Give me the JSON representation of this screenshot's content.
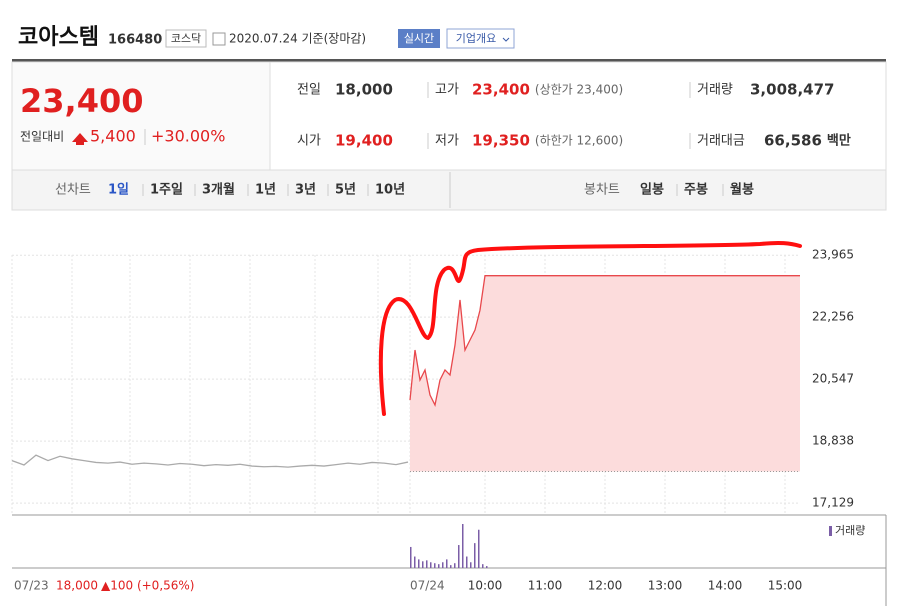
{
  "header": {
    "name": "코아스템",
    "code": "166480",
    "market": "코스닥",
    "date": "2020.07.24 기준(장마감)",
    "realtime": "실시간",
    "company_info": "기업개요"
  },
  "summary": {
    "price": "23,400",
    "change_label": "전일대비",
    "change": "5,400",
    "change_rate": "+30.00%"
  },
  "stats": [
    {
      "label": "전일",
      "value": "18,000"
    },
    {
      "label": "고가",
      "value": "23,400",
      "note": "(상한가 23,400)"
    },
    {
      "label": "거래량",
      "value": "3,008,477"
    },
    {
      "label": "시가",
      "value": "19,400"
    },
    {
      "label": "저가",
      "value": "19,350",
      "note": "(하한가 12,600)"
    },
    {
      "label": "거래대금",
      "value": "66,586",
      "unit": "백만"
    }
  ],
  "tabs": {
    "line_label": "선차트",
    "line": [
      "1일",
      "1주일",
      "3개월",
      "1년",
      "3년",
      "5년",
      "10년"
    ],
    "candle_label": "봉차트",
    "candle": [
      "일봉",
      "주봉",
      "월봉"
    ]
  },
  "chart_data": {
    "type": "line",
    "ylim": [
      16800,
      24660
    ],
    "yticks": [
      {
        "value": 23965,
        "label": "23,965"
      },
      {
        "value": 22256,
        "label": "22,256"
      },
      {
        "value": 20547,
        "label": "20,547"
      },
      {
        "value": 18838,
        "label": "18,838"
      },
      {
        "value": 17129,
        "label": "17,129"
      }
    ],
    "baseline": 18000,
    "series": [
      {
        "color": "#aaaaaa",
        "values": [
          18300,
          18180,
          18450,
          18300,
          18420,
          18350,
          18300,
          18250,
          18230,
          18260,
          18200,
          18230,
          18210,
          18180,
          18220,
          18200,
          18160,
          18190,
          18170,
          18200,
          18150,
          18130,
          18140,
          18120,
          18150,
          18170,
          18150,
          18190,
          18230,
          18200,
          18250,
          18230,
          18190,
          18260
        ]
      },
      {
        "color": "#e8484c",
        "values": [
          19971,
          21350,
          20523,
          20800,
          20110,
          19834,
          20523,
          20800,
          20660,
          21488,
          22730,
          21350,
          21626,
          21902,
          22450,
          23400,
          23400,
          23400,
          23400,
          23400,
          23400,
          23400,
          23400,
          23400,
          23400,
          23400,
          23400,
          23400,
          23400,
          23400,
          23400,
          23400,
          23400,
          23400,
          23400,
          23400,
          23400,
          23400,
          23400,
          23400,
          23400,
          23400,
          23400,
          23400,
          23400,
          23400,
          23400,
          23400,
          23400,
          23400,
          23400,
          23400,
          23400,
          23400,
          23400,
          23400,
          23400,
          23400,
          23400,
          23400,
          23400,
          23400,
          23400,
          23400,
          23400,
          23400,
          23400,
          23400,
          23400,
          23400,
          23400,
          23400,
          23400,
          23400,
          23400,
          23400,
          23400,
          23400,
          23400
        ]
      }
    ],
    "volume": {
      "name": "거래량",
      "color": "#7b5ea7",
      "values": [
        22,
        12,
        9,
        7,
        8,
        6,
        5,
        4,
        6,
        9,
        3,
        5,
        24,
        46,
        12,
        6,
        26,
        40,
        4,
        2
      ]
    },
    "x_labels": [
      "07/23",
      "07/24",
      "10:00",
      "11:00",
      "12:00",
      "13:00",
      "14:00",
      "15:00"
    ],
    "prev_info": {
      "close": "18,000",
      "change": "▲100 (+0,56%)"
    }
  }
}
